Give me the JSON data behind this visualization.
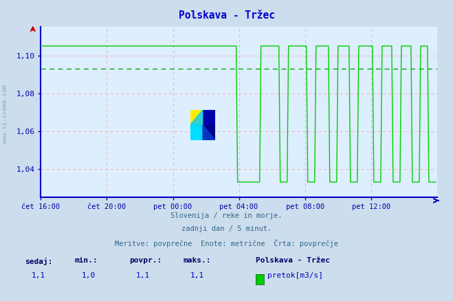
{
  "title": "Polskava - Tržec",
  "bg_color": "#ccdded",
  "plot_bg_color": "#ddeeff",
  "line_color": "#00cc00",
  "avg_line_color": "#00aa00",
  "grid_h_color": "#ffaaaa",
  "grid_v_color": "#ffaaaa",
  "axis_color": "#0000cc",
  "title_color": "#0000cc",
  "tick_color": "#0000aa",
  "footer_color": "#336688",
  "stats_label_color": "#000066",
  "stats_value_color": "#0000bb",
  "xlim": [
    0,
    288
  ],
  "ylim": [
    1.025,
    1.115
  ],
  "yticks": [
    1.04,
    1.06,
    1.08,
    1.1
  ],
  "ytick_labels": [
    "1,04",
    "1,06",
    "1,08",
    "1,10"
  ],
  "xtick_positions": [
    0,
    48,
    96,
    144,
    192,
    240
  ],
  "xtick_labels": [
    "čet 16:00",
    "čet 20:00",
    "pet 00:00",
    "pet 04:00",
    "pet 08:00",
    "pet 12:00"
  ],
  "avg_value": 1.093,
  "high_value": 1.105,
  "low_value": 1.033,
  "footer_line1": "Slovenija / reke in morje.",
  "footer_line2": "zadnji dan / 5 minut.",
  "footer_line3": "Meritve: povprečne  Enote: metrične  Črta: povprečje",
  "stats_labels": [
    "sedaj:",
    "min.:",
    "povpr.:",
    "maks.:"
  ],
  "stats_values": [
    "1,1",
    "1,0",
    "1,1",
    "1,1"
  ],
  "legend_station": "Polskava - Tržec",
  "legend_item": "pretok[m3/s]",
  "legend_color": "#00cc00",
  "watermark": "www.si-vreme.com"
}
